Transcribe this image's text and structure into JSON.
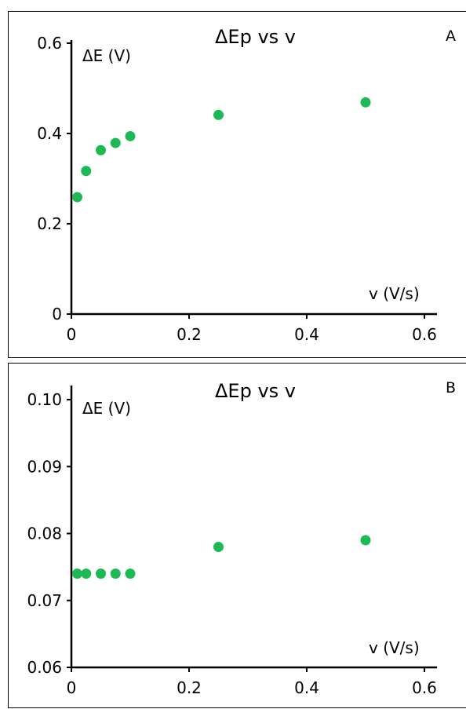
{
  "chart_data": [
    {
      "type": "scatter",
      "title": "ΔEp vs v",
      "panel_label": "A",
      "xlabel": "v (V/s)",
      "ylabel": "ΔE (V)",
      "xlim": [
        0,
        0.6
      ],
      "ylim": [
        0,
        0.6
      ],
      "x_ticks": [
        0,
        0.2,
        0.4,
        0.6
      ],
      "x_tick_labels": [
        "0",
        "0.2",
        "0.4",
        "0.6"
      ],
      "y_ticks": [
        0,
        0.2,
        0.4,
        0.6
      ],
      "y_tick_labels": [
        "0",
        "0.2",
        "0.4",
        "0.6"
      ],
      "grid": false,
      "color": "#1db954",
      "x": [
        0.01,
        0.025,
        0.05,
        0.075,
        0.1,
        0.25,
        0.5
      ],
      "y": [
        0.259,
        0.317,
        0.363,
        0.379,
        0.394,
        0.441,
        0.469
      ]
    },
    {
      "type": "scatter",
      "title": "ΔEp vs v",
      "panel_label": "B",
      "xlabel": "v (V/s)",
      "ylabel": "ΔE (V)",
      "xlim": [
        0,
        0.6
      ],
      "ylim": [
        0.06,
        0.1
      ],
      "x_ticks": [
        0,
        0.2,
        0.4,
        0.6
      ],
      "x_tick_labels": [
        "0",
        "0.2",
        "0.4",
        "0.6"
      ],
      "y_ticks": [
        0.06,
        0.07,
        0.08,
        0.09,
        0.1
      ],
      "y_tick_labels": [
        "0.06",
        "0.07",
        "0.08",
        "0.09",
        "0.10"
      ],
      "grid": false,
      "color": "#1db954",
      "x": [
        0.01,
        0.025,
        0.05,
        0.075,
        0.1,
        0.25,
        0.5
      ],
      "y": [
        0.074,
        0.074,
        0.074,
        0.074,
        0.074,
        0.078,
        0.079
      ]
    }
  ]
}
